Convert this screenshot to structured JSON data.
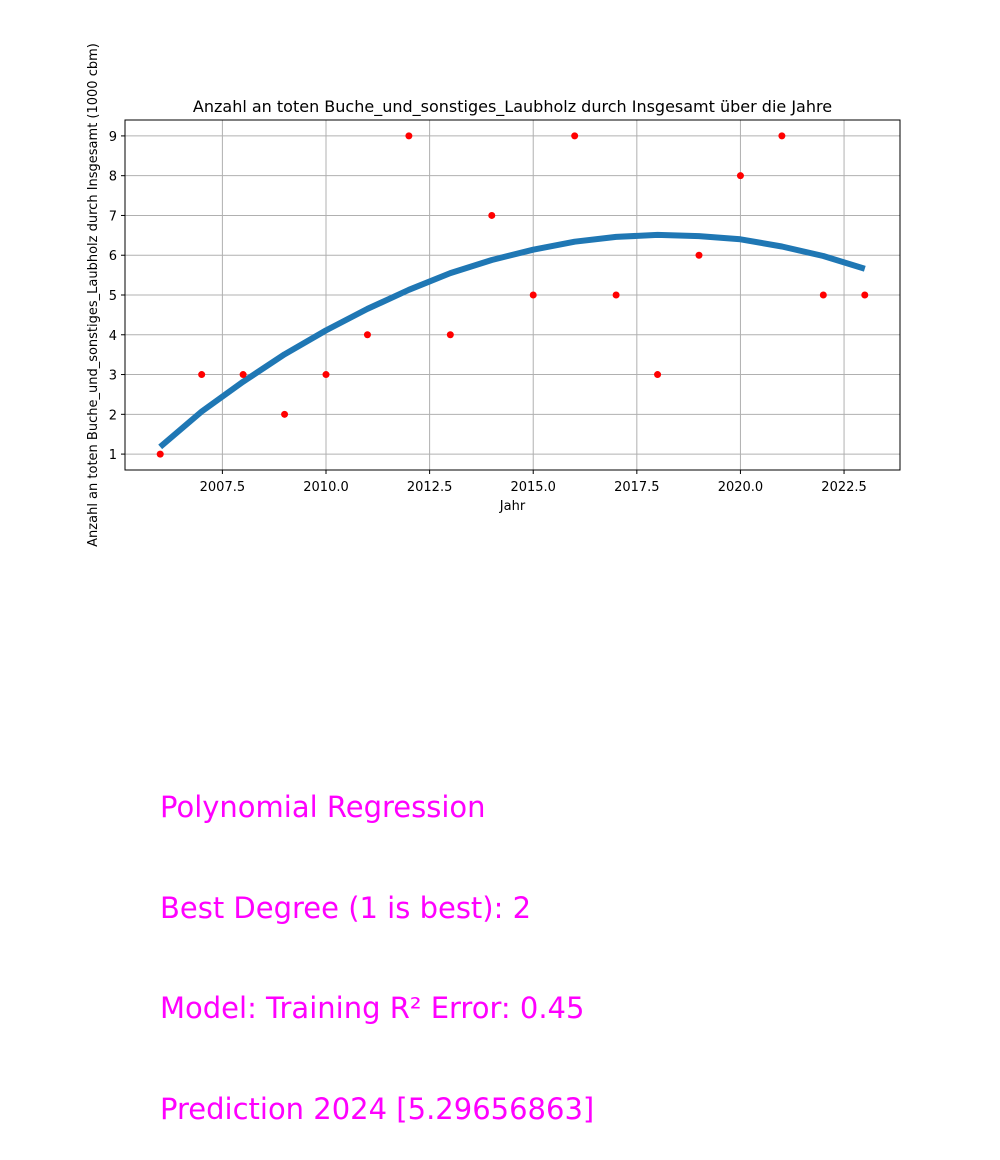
{
  "chart_data": {
    "type": "scatter",
    "title": "Anzahl an toten Buche_und_sonstiges_Laubholz durch Insgesamt über die Jahre",
    "xlabel": "Jahr",
    "ylabel": "Anzahl an toten Buche_und_sonstiges_Laubholz durch Insgesamt (1000 cbm)",
    "xlim": [
      2005.15,
      2023.85
    ],
    "ylim": [
      0.6,
      9.4
    ],
    "grid": true,
    "x_ticks": [
      2007.5,
      2010.0,
      2012.5,
      2015.0,
      2017.5,
      2020.0,
      2022.5
    ],
    "x_tick_labels": [
      "2007.5",
      "2010.0",
      "2012.5",
      "2015.0",
      "2017.5",
      "2020.0",
      "2022.5"
    ],
    "y_ticks": [
      1,
      2,
      3,
      4,
      5,
      6,
      7,
      8,
      9
    ],
    "y_tick_labels": [
      "1",
      "2",
      "3",
      "4",
      "5",
      "6",
      "7",
      "8",
      "9"
    ],
    "series": [
      {
        "kind": "scatter",
        "color": "#ff0000",
        "x": [
          2006,
          2007,
          2008,
          2009,
          2010,
          2011,
          2012,
          2013,
          2014,
          2015,
          2016,
          2017,
          2018,
          2019,
          2020,
          2021,
          2022,
          2023
        ],
        "y": [
          1,
          3,
          3,
          2,
          3,
          4,
          9,
          4,
          7,
          5,
          9,
          5,
          3,
          6,
          8,
          9,
          5,
          5
        ]
      },
      {
        "kind": "line",
        "color": "#1f77b4",
        "x": [
          2006,
          2007,
          2008,
          2009,
          2010,
          2011,
          2012,
          2013,
          2014,
          2015,
          2016,
          2017,
          2018,
          2019,
          2020,
          2021,
          2022,
          2023
        ],
        "y": [
          1.18,
          2.07,
          2.82,
          3.51,
          4.11,
          4.65,
          5.13,
          5.55,
          5.88,
          6.14,
          6.34,
          6.46,
          6.51,
          6.48,
          6.4,
          6.22,
          5.98,
          5.66
        ]
      }
    ]
  },
  "annotation": {
    "color": "#ff00ff",
    "lines": [
      "Polynomial Regression",
      "Best Degree (1 is best): 2",
      "Model: Training R² Error: 0.45",
      "Prediction 2024 [5.29656863]"
    ]
  }
}
